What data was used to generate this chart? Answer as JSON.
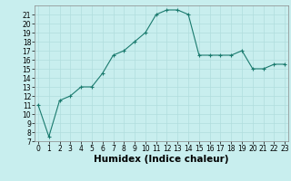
{
  "x": [
    0,
    1,
    2,
    3,
    4,
    5,
    6,
    7,
    8,
    9,
    10,
    11,
    12,
    13,
    14,
    15,
    16,
    17,
    18,
    19,
    20,
    21,
    22,
    23
  ],
  "y": [
    11,
    7.5,
    11.5,
    12,
    13,
    13,
    14.5,
    16.5,
    17,
    18,
    19,
    21,
    21.5,
    21.5,
    21,
    16.5,
    16.5,
    16.5,
    16.5,
    17,
    15,
    15,
    15.5,
    15.5
  ],
  "xlabel": "Humidex (Indice chaleur)",
  "ylim": [
    7,
    22
  ],
  "xlim": [
    -0.3,
    23.3
  ],
  "yticks": [
    7,
    8,
    9,
    10,
    11,
    12,
    13,
    14,
    15,
    16,
    17,
    18,
    19,
    20,
    21
  ],
  "xticks": [
    0,
    1,
    2,
    3,
    4,
    5,
    6,
    7,
    8,
    9,
    10,
    11,
    12,
    13,
    14,
    15,
    16,
    17,
    18,
    19,
    20,
    21,
    22,
    23
  ],
  "line_color": "#1a7a6e",
  "marker": "+",
  "bg_color": "#c8eeee",
  "grid_color": "#b0dddd",
  "tick_fontsize": 5.5,
  "xlabel_fontsize": 7.5
}
